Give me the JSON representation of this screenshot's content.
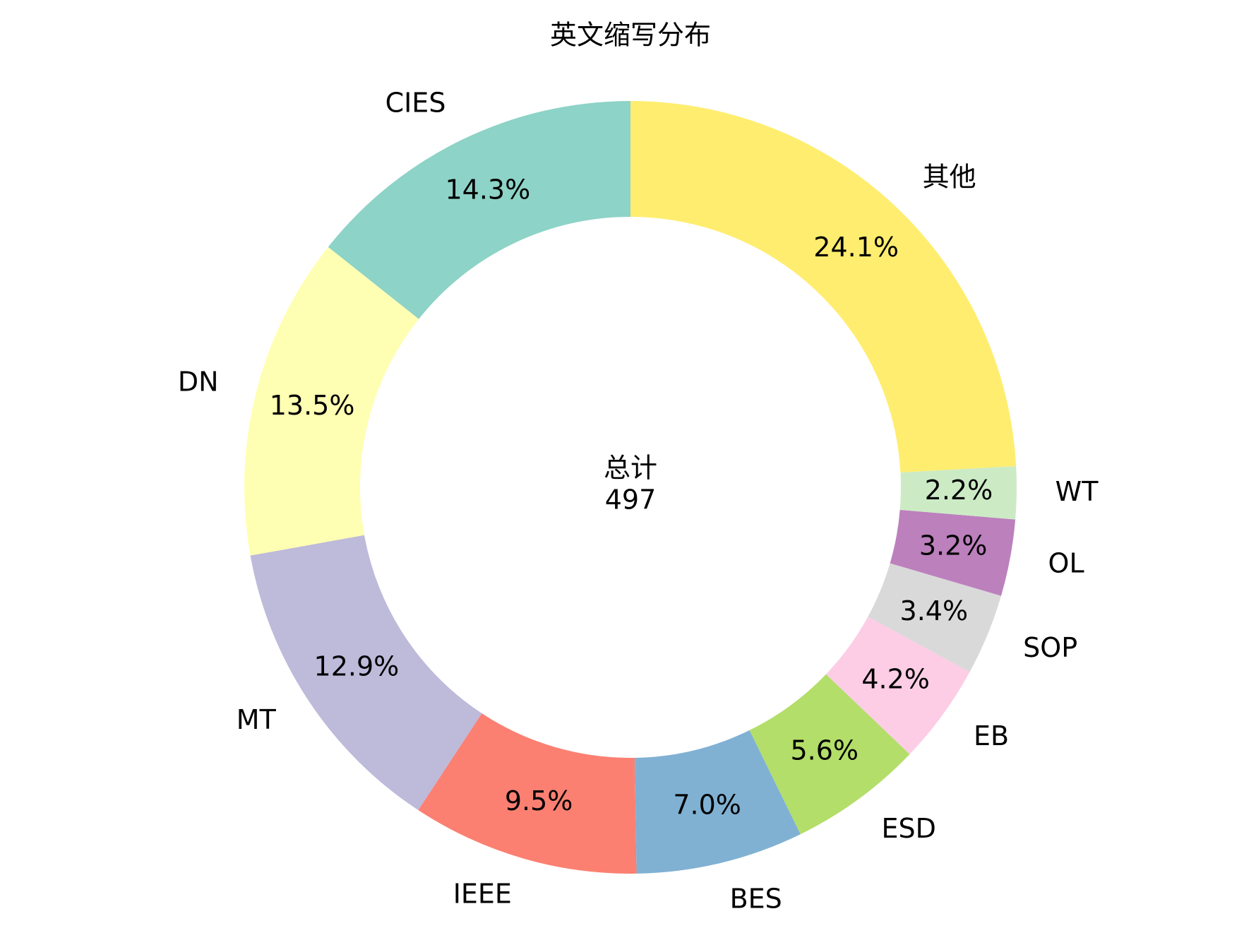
{
  "chart_data": {
    "type": "donut",
    "title": "英文缩写分布",
    "categories": [
      "CIES",
      "DN",
      "MT",
      "IEEE",
      "BES",
      "ESD",
      "EB",
      "SOP",
      "OL",
      "WT",
      "其他"
    ],
    "values": [
      14.3,
      13.5,
      12.9,
      9.5,
      7.0,
      5.6,
      4.2,
      3.4,
      3.2,
      2.2,
      24.1
    ],
    "value_labels": [
      "14.3%",
      "13.5%",
      "12.9%",
      "9.5%",
      "7.0%",
      "5.6%",
      "4.2%",
      "3.4%",
      "3.2%",
      "2.2%",
      "24.1%"
    ],
    "colors": [
      "#8dd3c7",
      "#ffffb3",
      "#bebada",
      "#fb8072",
      "#80b1d3",
      "#b3de69",
      "#fccde5",
      "#d9d9d9",
      "#bc80bd",
      "#ccebc5",
      "#ffed6f"
    ],
    "center_label": "总计",
    "total": 497
  }
}
